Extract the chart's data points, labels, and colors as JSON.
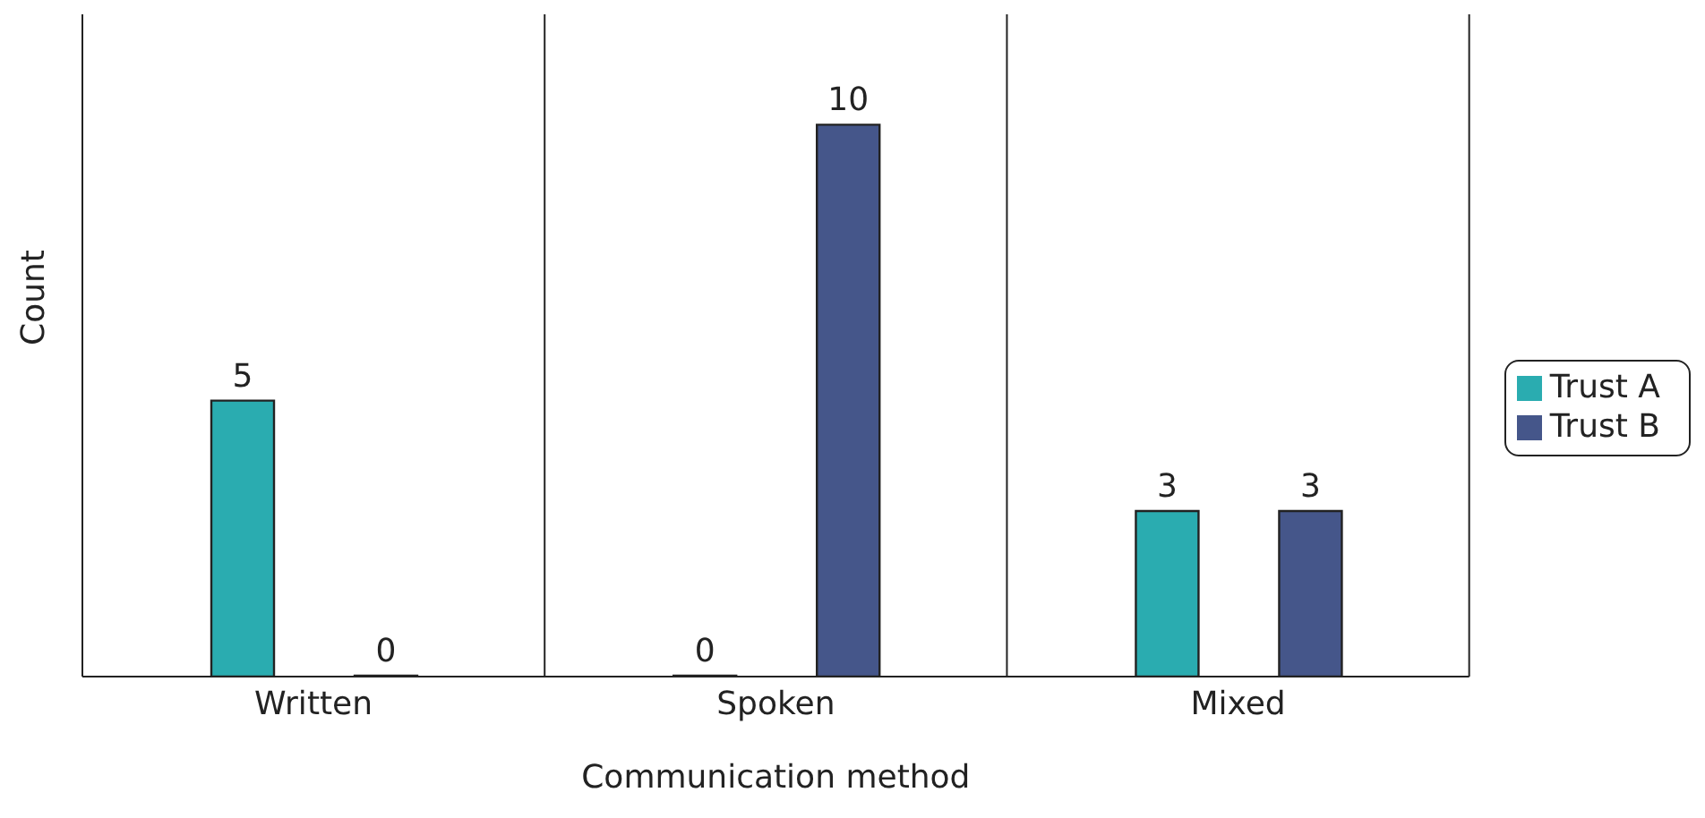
{
  "chart_data": {
    "type": "bar",
    "xlabel": "Communication method",
    "ylabel": "Count",
    "categories": [
      "Written",
      "Spoken",
      "Mixed"
    ],
    "series": [
      {
        "name": "Trust A",
        "color": "#2aacb0",
        "values": [
          5,
          0,
          3
        ]
      },
      {
        "name": "Trust B",
        "color": "#45568a",
        "values": [
          0,
          10,
          3
        ]
      }
    ],
    "ylim": [
      0,
      12
    ],
    "tick_labels": "x",
    "data_labels": true,
    "grid": "x",
    "legend": "right"
  }
}
